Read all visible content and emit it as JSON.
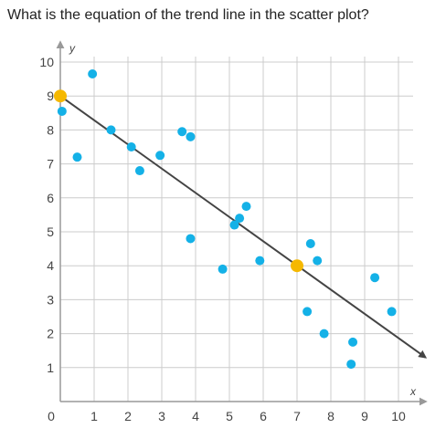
{
  "question": "What is the equation of the trend line in the scatter plot?",
  "chart_data": {
    "type": "scatter",
    "title": "",
    "xlabel": "x",
    "ylabel": "y",
    "xlim": [
      0,
      10.5
    ],
    "ylim": [
      0,
      10.2
    ],
    "x_ticks": [
      "0",
      "1",
      "2",
      "3",
      "4",
      "5",
      "6",
      "7",
      "8",
      "9",
      "10"
    ],
    "y_ticks": [
      "1",
      "2",
      "3",
      "4",
      "5",
      "6",
      "7",
      "8",
      "9",
      "10"
    ],
    "grid": true,
    "colors": {
      "points": "#14b1e7",
      "highlight": "#f5b800",
      "line": "#444444",
      "grid": "#cccccc"
    },
    "points": [
      {
        "x": 0.05,
        "y": 8.55
      },
      {
        "x": 0.5,
        "y": 7.2
      },
      {
        "x": 0.95,
        "y": 9.65
      },
      {
        "x": 1.5,
        "y": 8.0
      },
      {
        "x": 2.1,
        "y": 7.5
      },
      {
        "x": 2.35,
        "y": 6.8
      },
      {
        "x": 2.95,
        "y": 7.25
      },
      {
        "x": 3.6,
        "y": 7.95
      },
      {
        "x": 3.85,
        "y": 7.8
      },
      {
        "x": 3.85,
        "y": 4.8
      },
      {
        "x": 4.8,
        "y": 3.9
      },
      {
        "x": 5.15,
        "y": 5.2
      },
      {
        "x": 5.3,
        "y": 5.4
      },
      {
        "x": 5.5,
        "y": 5.75
      },
      {
        "x": 5.9,
        "y": 4.15
      },
      {
        "x": 7.3,
        "y": 2.65
      },
      {
        "x": 7.4,
        "y": 4.65
      },
      {
        "x": 7.6,
        "y": 4.15
      },
      {
        "x": 7.8,
        "y": 2.0
      },
      {
        "x": 8.6,
        "y": 1.1
      },
      {
        "x": 8.65,
        "y": 1.75
      },
      {
        "x": 9.3,
        "y": 3.65
      },
      {
        "x": 9.8,
        "y": 2.65
      }
    ],
    "highlighted_points": [
      {
        "x": 0,
        "y": 9
      },
      {
        "x": 7,
        "y": 4
      }
    ],
    "trend_line": {
      "from": {
        "x": 0,
        "y": 9
      },
      "to": {
        "x": 10.8,
        "y": 1.3
      }
    }
  }
}
